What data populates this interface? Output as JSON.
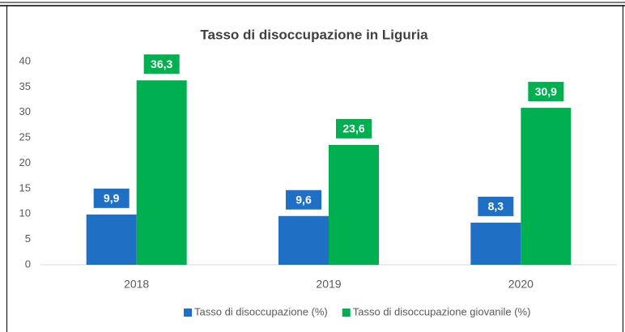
{
  "chart_data": {
    "type": "bar",
    "title": "Tasso di disoccupazione in Liguria",
    "categories": [
      "2018",
      "2019",
      "2020"
    ],
    "series": [
      {
        "name": "Tasso di disoccupazione (%)",
        "color": "#1f6fc5",
        "values": [
          9.9,
          9.6,
          8.3
        ],
        "value_labels": [
          "9,9",
          "9,6",
          "8,3"
        ]
      },
      {
        "name": "Tasso di disoccupazione giovanile (%)",
        "color": "#00b050",
        "values": [
          36.3,
          23.6,
          30.9
        ],
        "value_labels": [
          "36,3",
          "23,6",
          "30,9"
        ]
      }
    ],
    "ylim": [
      0,
      40
    ],
    "yticks": [
      0,
      5,
      10,
      15,
      20,
      25,
      30,
      35,
      40
    ],
    "grid": false,
    "legend": "bottom"
  }
}
